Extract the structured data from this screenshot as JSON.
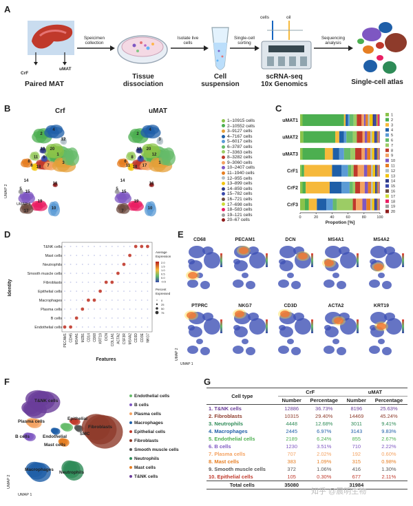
{
  "panels": {
    "A": "A",
    "B": "B",
    "C": "C",
    "D": "D",
    "E": "E",
    "F": "F",
    "G": "G"
  },
  "panelA": {
    "image_label": "Paired MAT",
    "crf": "CrF",
    "umat": "uMAT",
    "step1": "Speicimen\ncollection",
    "step2": "Isolate live\ncells",
    "step3": "Single-cell\nsorting",
    "step4": "Sequencing\nanalysis",
    "cells": "cells",
    "oil": "oil",
    "cap1": "Tissue\ndissociation",
    "cap2": "Cell\nsuspension",
    "cap3": "scRNA-seq\n10x Genomics",
    "cap4": "Single-cell atlas"
  },
  "panelB": {
    "title_left": "Crf",
    "title_right": "uMAT",
    "xlabel": "UMAP 1",
    "ylabel": "UMAP 2",
    "legend": [
      {
        "label": "1–10915  cells",
        "color": "#8bc34a"
      },
      {
        "label": "2–10552  cells",
        "color": "#4caf50"
      },
      {
        "label": "3–9127  cells",
        "color": "#e6a03a"
      },
      {
        "label": "4–7167  cells",
        "color": "#1f5fa8"
      },
      {
        "label": "5–6017  cells",
        "color": "#5b9bd5"
      },
      {
        "label": "6–3787  cells",
        "color": "#66bb6a"
      },
      {
        "label": "7–3363  cells",
        "color": "#9ccc65"
      },
      {
        "label": "8–3282  cells",
        "color": "#c0392b"
      },
      {
        "label": "9–3060  cells",
        "color": "#f4a261"
      },
      {
        "label": "10–2407  cells",
        "color": "#7e57c2"
      },
      {
        "label": "11–1940  cells",
        "color": "#e67e22"
      },
      {
        "label": "12–955  cells",
        "color": "#b0bec5"
      },
      {
        "label": "13–899  cells",
        "color": "#f1c40f"
      },
      {
        "label": "14–859  cells",
        "color": "#2e3a87"
      },
      {
        "label": "15–782  cells",
        "color": "#3949ab"
      },
      {
        "label": "16–721  cells",
        "color": "#6d4c41"
      },
      {
        "label": "17–698  cells",
        "color": "#cddc39"
      },
      {
        "label": "18–583  cells",
        "color": "#e91e63"
      },
      {
        "label": "19–121  cells",
        "color": "#9e9e9e"
      },
      {
        "label": "20–67  cells",
        "color": "#8e1b1b"
      }
    ],
    "cluster_labels_left": [
      "2",
      "4",
      "1",
      "3",
      "12",
      "13",
      "11",
      "8",
      "6",
      "7",
      "9",
      "14",
      "15",
      "10",
      "19",
      "5",
      "18",
      "17",
      "16",
      "20"
    ],
    "cluster_labels_right": [
      "2",
      "4",
      "12",
      "1",
      "3",
      "13",
      "8",
      "6",
      "11",
      "17",
      "9",
      "14",
      "15",
      "10",
      "19",
      "5",
      "18",
      "7",
      "16",
      "20"
    ]
  },
  "chart_data": {
    "type": "bar",
    "orientation": "horizontal-stacked",
    "categories": [
      "uMAT1",
      "uMAT2",
      "uMAT3",
      "CrF1",
      "CrF2",
      "CrF3"
    ],
    "xlabel": "Propotion [%]",
    "xlim": [
      0,
      100
    ],
    "xticks": [
      "0",
      "20",
      "40",
      "60",
      "80",
      "100"
    ],
    "legend": [
      "1",
      "2",
      "3",
      "4",
      "5",
      "6",
      "7",
      "8",
      "9",
      "10",
      "11",
      "12",
      "13",
      "14",
      "15",
      "16",
      "17",
      "18",
      "19",
      "20"
    ],
    "colors": [
      "#8bc34a",
      "#4caf50",
      "#f6b93b",
      "#1f5fa8",
      "#5b9bd5",
      "#66bb6a",
      "#9ccc65",
      "#c0392b",
      "#f4a261",
      "#7e57c2",
      "#e67e22",
      "#b0bec5",
      "#f1c40f",
      "#2e3a87",
      "#3949ab",
      "#6d4c41",
      "#cddc39",
      "#e91e63",
      "#9e9e9e",
      "#8e1b1b"
    ],
    "series_values": [
      [
        3,
        52,
        2,
        3,
        2,
        5,
        4,
        6,
        3,
        2,
        3,
        2,
        4,
        2,
        2,
        1,
        1,
        2,
        1,
        0
      ],
      [
        4,
        40,
        5,
        6,
        3,
        8,
        5,
        7,
        3,
        3,
        4,
        2,
        3,
        1,
        2,
        1,
        1,
        1,
        1,
        0
      ],
      [
        3,
        28,
        10,
        8,
        6,
        8,
        6,
        8,
        4,
        3,
        4,
        2,
        3,
        1,
        2,
        1,
        1,
        1,
        1,
        0
      ],
      [
        2,
        3,
        35,
        12,
        8,
        4,
        3,
        5,
        8,
        4,
        5,
        2,
        3,
        1,
        1,
        1,
        1,
        1,
        1,
        0
      ],
      [
        3,
        4,
        30,
        15,
        10,
        4,
        3,
        6,
        6,
        4,
        4,
        2,
        3,
        1,
        1,
        1,
        1,
        1,
        1,
        0
      ],
      [
        6,
        5,
        10,
        12,
        8,
        5,
        20,
        4,
        8,
        5,
        5,
        2,
        3,
        1,
        2,
        1,
        1,
        1,
        1,
        0
      ]
    ]
  },
  "panelD": {
    "ylabel": "Identity",
    "xlabel": "Features",
    "rows": [
      "T&NK cells",
      "Mast cells",
      "Neutrophils",
      "Smooth muscle cells",
      "Fibroblasts",
      "Epithelial cells",
      "Macrophages",
      "Plasma cells",
      "B cells",
      "Endothelial cells"
    ],
    "genes": [
      "PECAM1",
      "CDH5",
      "MS4A1",
      "MZB1",
      "CD14",
      "CD68",
      "KRT19",
      "DCN",
      "COL1A1",
      "ACTA2",
      "CSF3R",
      "MS4A2",
      "CD3D",
      "CD3E",
      "NKG7"
    ],
    "legend_avg_title": "Average\nExpression",
    "legend_avg_ticks": [
      "2.0",
      "1.5",
      "1.0",
      "0.5",
      "0.0",
      "-0.5"
    ],
    "legend_pct_title": "Percent\nExpressed",
    "legend_pct_ticks": [
      "0",
      "25",
      "50",
      "75"
    ]
  },
  "panelE": {
    "genes_row1": [
      "CD68",
      "PECAM1",
      "DCN",
      "MS4A1",
      "MS4A2"
    ],
    "genes_row2": [
      "PTPRC",
      "NKG7",
      "CD3D",
      "ACTA2",
      "KRT19"
    ],
    "xlabel": "UMAP 1",
    "ylabel": "UMAP 2"
  },
  "panelF": {
    "xlabel": "UMAP 1",
    "ylabel": "UMAP 2",
    "map_labels": [
      "T&NK cells",
      "Plasma cells",
      "B cells",
      "Endothelial",
      "Epithelial",
      "SMC",
      "Mast cells",
      "Fibroblasts",
      "Macrophages",
      "Neutrophils"
    ],
    "legend": [
      {
        "label": "Endothelial cells",
        "color": "#66bb6a"
      },
      {
        "label": "B cells",
        "color": "#7e57c2"
      },
      {
        "label": "Plasma cells",
        "color": "#f4a261"
      },
      {
        "label": "Macrophages",
        "color": "#1f5fa8"
      },
      {
        "label": "Epithelial cells",
        "color": "#c0392b"
      },
      {
        "label": "Fibroblasts",
        "color": "#8e3b2b"
      },
      {
        "label": "Smooth muscle cells",
        "color": "#555555"
      },
      {
        "label": "Neutrophils",
        "color": "#2e8b57"
      },
      {
        "label": "Mast cells",
        "color": "#e67e22"
      },
      {
        "label": "T&NK cells",
        "color": "#6a3d9a"
      }
    ]
  },
  "panelG": {
    "col_celltype": "Cell type",
    "col_crf": "CrF",
    "col_umat": "uMAT",
    "col_number": "Number",
    "col_percentage": "Percentage",
    "rows": [
      {
        "name": "1.  T&NK cells",
        "crf_n": "12886",
        "crf_p": "36.73%",
        "umat_n": "8196",
        "umat_p": "25.63%",
        "color": "#6a3d9a"
      },
      {
        "name": "2.  Fibroblasts",
        "crf_n": "10315",
        "crf_p": "29.40%",
        "umat_n": "14469",
        "umat_p": "45.24%",
        "color": "#8e3b2b"
      },
      {
        "name": "3.  Neutrophils",
        "crf_n": "4448",
        "crf_p": "12.68%",
        "umat_n": "3011",
        "umat_p": "9.41%",
        "color": "#2e8b57"
      },
      {
        "name": "4.  Macrophages",
        "crf_n": "2445",
        "crf_p": "6.97%",
        "umat_n": "3143",
        "umat_p": "9.83%",
        "color": "#1f5fa8"
      },
      {
        "name": "5.  Endothelial cells",
        "crf_n": "2189",
        "crf_p": "6.24%",
        "umat_n": "855",
        "umat_p": "2.67%",
        "color": "#4caf50"
      },
      {
        "name": "6.  B cells",
        "crf_n": "1230",
        "crf_p": "3.51%",
        "umat_n": "710",
        "umat_p": "2.22%",
        "color": "#7e57c2"
      },
      {
        "name": "7.  Plasma cells",
        "crf_n": "707",
        "crf_p": "2.02%",
        "umat_n": "192",
        "umat_p": "0.60%",
        "color": "#f4a261"
      },
      {
        "name": "8.  Mast cells",
        "crf_n": "383",
        "crf_p": "1.09%",
        "umat_n": "315",
        "umat_p": "0.98%",
        "color": "#e67e22"
      },
      {
        "name": "9.  Smooth muscle cells",
        "crf_n": "372",
        "crf_p": "1.06%",
        "umat_n": "416",
        "umat_p": "1.30%",
        "color": "#555555"
      },
      {
        "name": "10. Epithelial cells",
        "crf_n": "105",
        "crf_p": "0.30%",
        "umat_n": "677",
        "umat_p": "2.11%",
        "color": "#c0392b"
      }
    ],
    "total_label": "Total cells",
    "total_crf": "35080",
    "total_umat": "31984",
    "watermark": "知乎 @晨明生物"
  }
}
